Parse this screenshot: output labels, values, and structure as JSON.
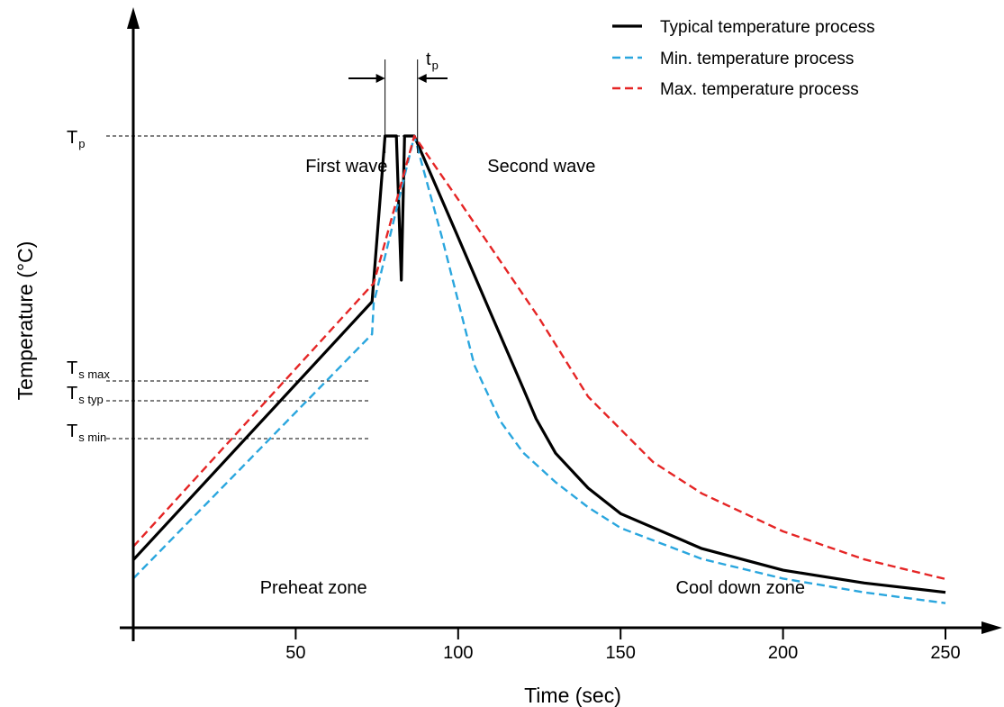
{
  "chart_data": {
    "type": "line",
    "xlabel": "Time (sec)",
    "ylabel": "Temperature (°C)",
    "x_ticks": [
      50,
      100,
      150,
      200,
      250
    ],
    "y_ticks": [],
    "xlim": [
      0,
      262
    ],
    "y_levels": [
      {
        "key": "Tp",
        "main": "T",
        "sub": "p"
      },
      {
        "key": "Ts_max",
        "main": "T",
        "sub": "s max"
      },
      {
        "key": "Ts_typ",
        "main": "T",
        "sub": "s typ"
      },
      {
        "key": "Ts_min",
        "main": "T",
        "sub": "s min"
      }
    ],
    "legend_position": "top-right",
    "series": [
      {
        "name": "Typical temperature process",
        "color": "#000000",
        "dash": "solid",
        "points": [
          [
            0,
            0.138
          ],
          [
            73.5,
            0.663
          ],
          [
            77.5,
            1.0
          ],
          [
            81,
            1.0
          ],
          [
            82.5,
            0.707
          ],
          [
            83.5,
            1.0
          ],
          [
            86.5,
            1.0
          ],
          [
            100,
            0.794
          ],
          [
            110,
            0.64
          ],
          [
            120,
            0.487
          ],
          [
            124,
            0.425
          ],
          [
            130,
            0.355
          ],
          [
            140,
            0.284
          ],
          [
            150,
            0.232
          ],
          [
            175,
            0.161
          ],
          [
            200,
            0.117
          ],
          [
            225,
            0.091
          ],
          [
            250,
            0.072
          ]
        ]
      },
      {
        "name": "Min. temperature process",
        "color": "#2aa6de",
        "dash": "dashed",
        "points": [
          [
            0,
            0.1
          ],
          [
            73.5,
            0.597
          ],
          [
            74,
            0.66
          ],
          [
            86.5,
            1.0
          ],
          [
            95,
            0.794
          ],
          [
            105,
            0.534
          ],
          [
            113,
            0.42
          ],
          [
            120,
            0.356
          ],
          [
            130,
            0.296
          ],
          [
            140,
            0.245
          ],
          [
            150,
            0.203
          ],
          [
            175,
            0.14
          ],
          [
            200,
            0.1
          ],
          [
            225,
            0.072
          ],
          [
            250,
            0.05
          ]
        ]
      },
      {
        "name": "Max. temperature process",
        "color": "#e52525",
        "dash": "dashed",
        "points": [
          [
            0,
            0.165
          ],
          [
            73.5,
            0.697
          ],
          [
            74,
            0.7
          ],
          [
            86.5,
            1.0
          ],
          [
            100,
            0.871
          ],
          [
            125,
            0.629
          ],
          [
            140,
            0.47
          ],
          [
            160,
            0.337
          ],
          [
            175,
            0.273
          ],
          [
            200,
            0.196
          ],
          [
            225,
            0.139
          ],
          [
            250,
            0.099
          ]
        ]
      }
    ],
    "annotations": [
      {
        "text": "First wave",
        "x": 53,
        "y": 0.94
      },
      {
        "text": "Second wave",
        "x": 109,
        "y": 0.94
      },
      {
        "text": "Preheat zone",
        "x": 39,
        "y": 0.082
      },
      {
        "text": "Cool down zone",
        "x": 167,
        "y": 0.082
      }
    ],
    "tp_label": {
      "main": "t",
      "sub": "p"
    },
    "tp_span": [
      77.5,
      87.5
    ]
  }
}
